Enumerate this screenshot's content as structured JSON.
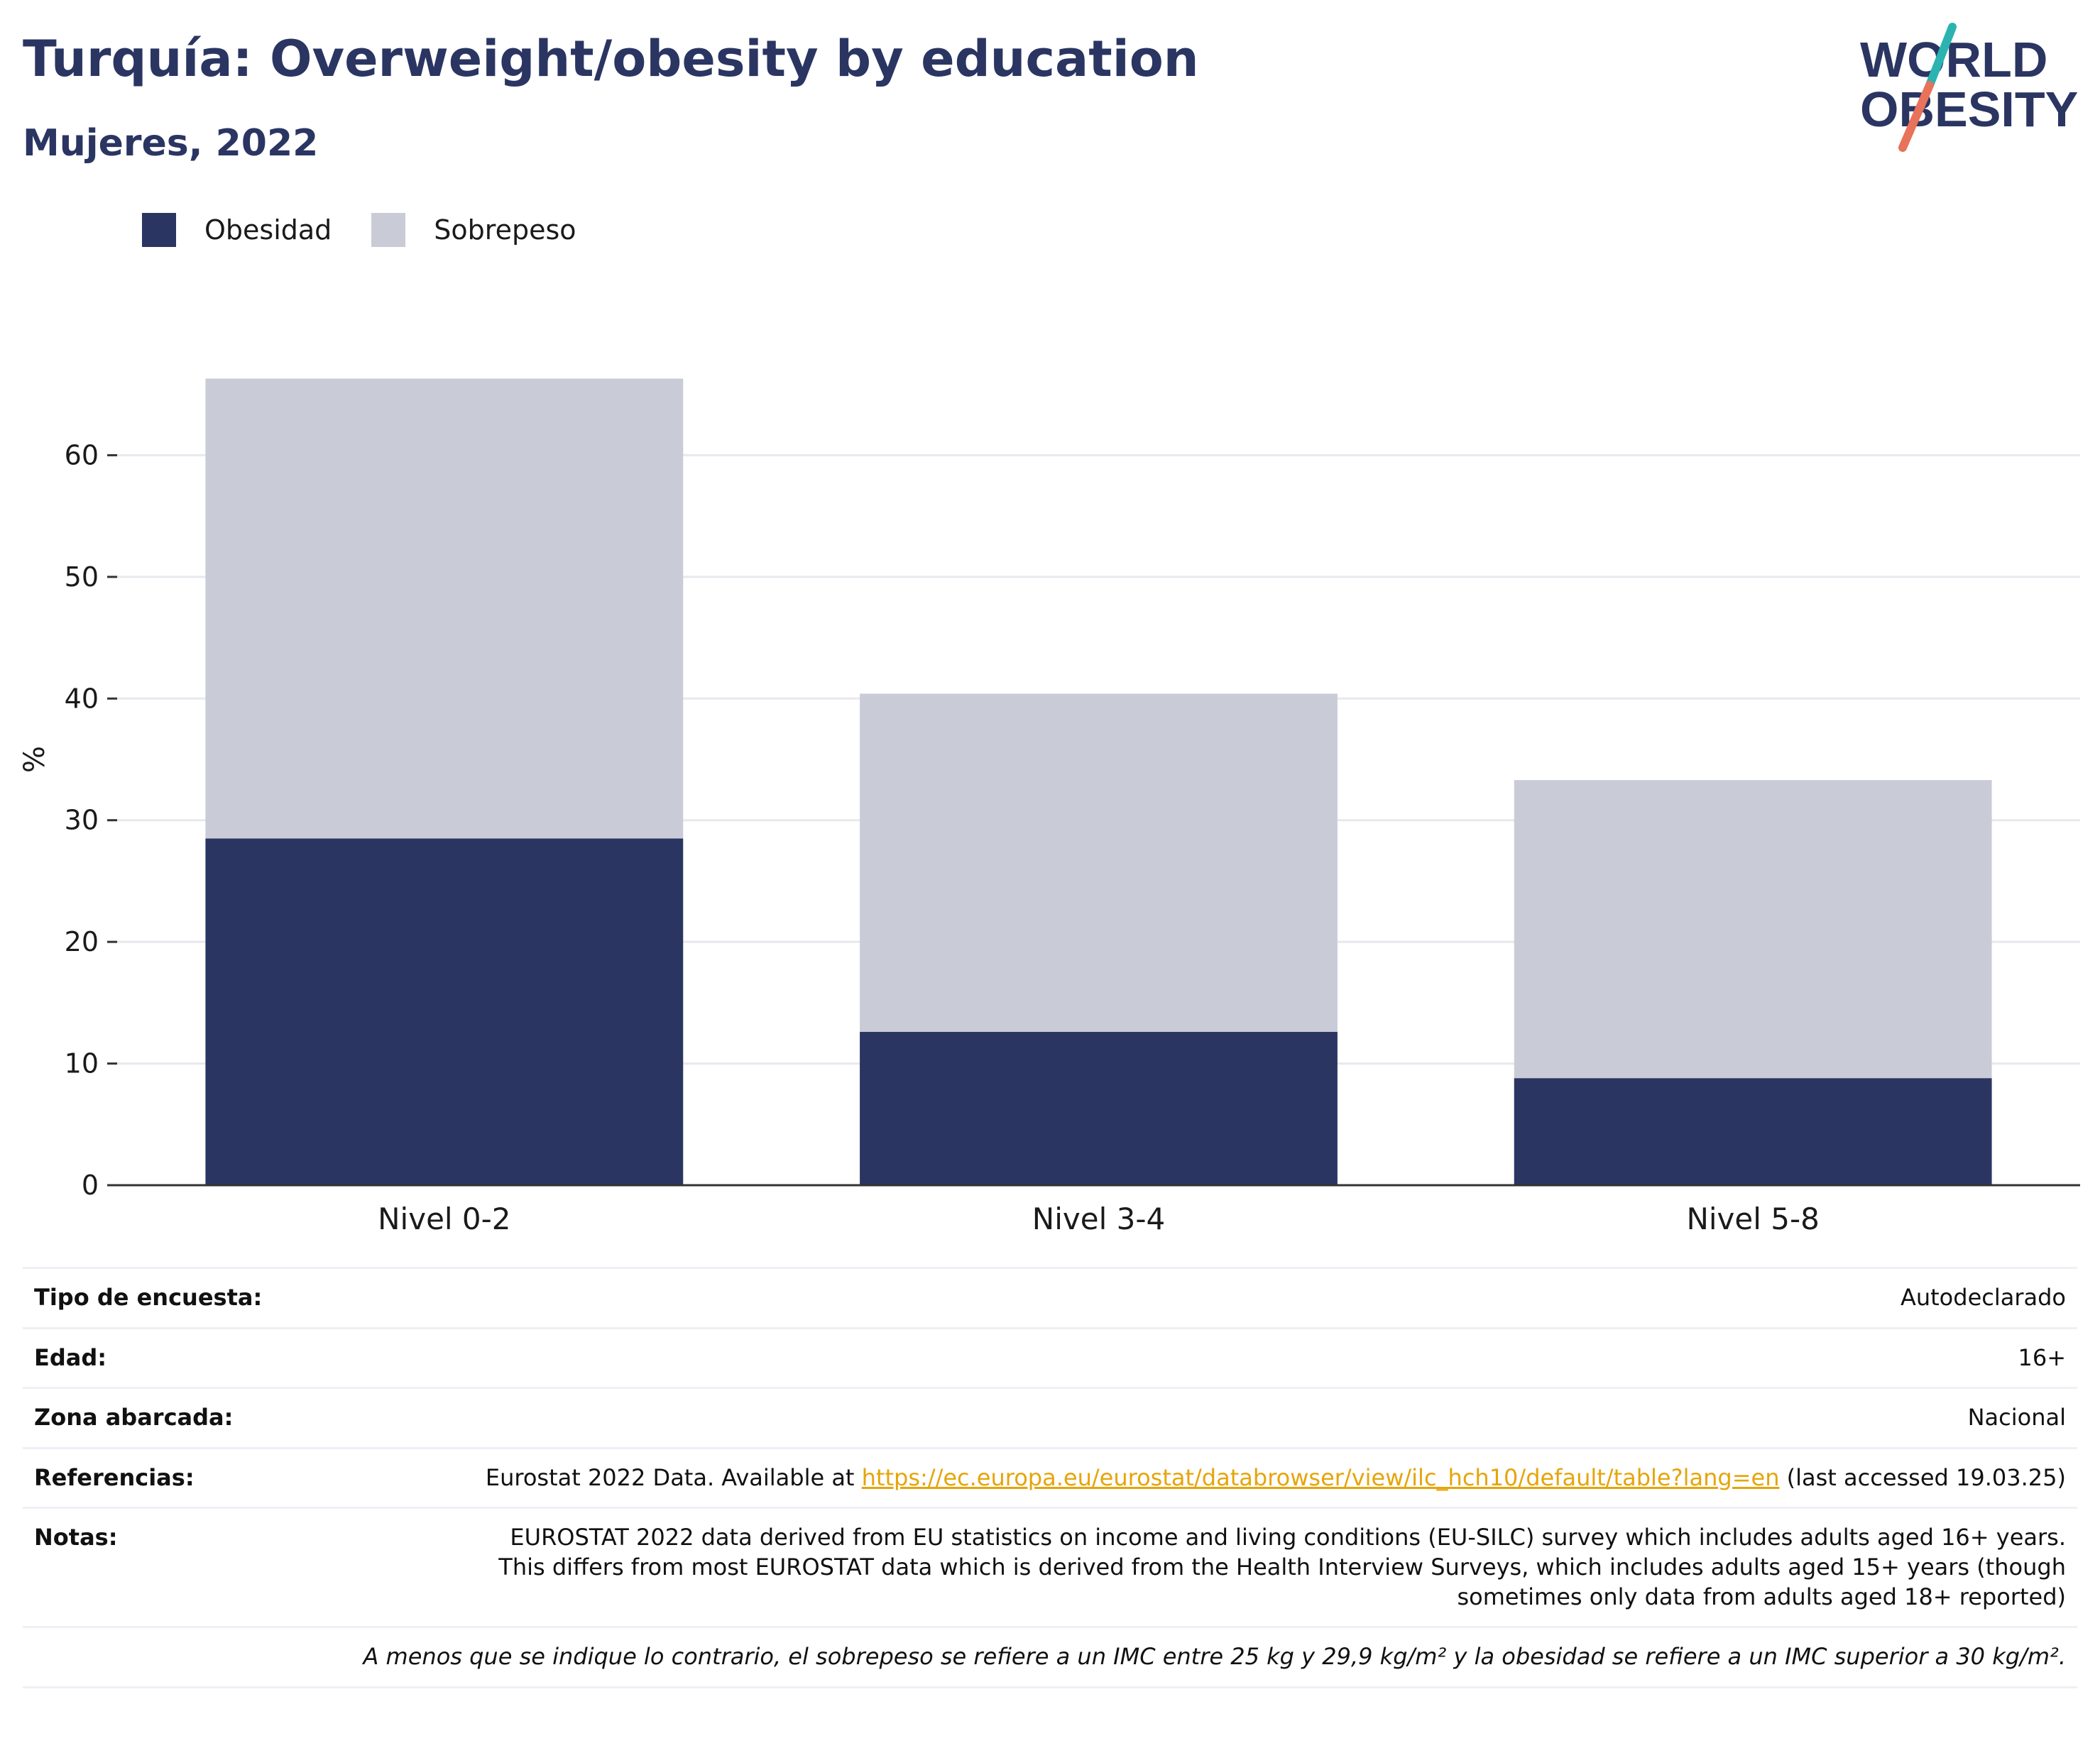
{
  "header": {
    "title": "Turquía: Overweight/obesity by education",
    "subtitle": "Mujeres, 2022"
  },
  "logo": {
    "line1": "WORLD",
    "line2": "OBESITY",
    "colors": {
      "text": "#2a3562",
      "slash_top": "#2bb3b1",
      "slash_bottom": "#e8725a"
    }
  },
  "legend": {
    "items": [
      {
        "label": "Obesidad",
        "color": "#2a3562"
      },
      {
        "label": "Sobrepeso",
        "color": "#c9ccd7"
      }
    ]
  },
  "chart_data": {
    "type": "bar",
    "stacked": true,
    "categories": [
      "Nivel 0-2",
      "Nivel 3-4",
      "Nivel 5-8"
    ],
    "series": [
      {
        "name": "Obesidad",
        "color": "#2a3562",
        "values": [
          28.5,
          12.6,
          8.8
        ]
      },
      {
        "name": "Sobrepeso",
        "color": "#c9ccd7",
        "values": [
          37.8,
          27.8,
          24.5
        ]
      }
    ],
    "ylabel": "%",
    "ylim": [
      0,
      70
    ],
    "yticks": [
      0,
      10,
      20,
      30,
      40,
      50,
      60
    ],
    "grid": true,
    "legend_position": "top-left"
  },
  "info": {
    "rows": [
      {
        "key": "Tipo de encuesta:",
        "value": "Autodeclarado"
      },
      {
        "key": "Edad:",
        "value": "16+"
      },
      {
        "key": "Zona abarcada:",
        "value": "Nacional"
      }
    ],
    "references": {
      "key": "Referencias:",
      "prefix": "Eurostat 2022 Data. Available at ",
      "link": "https://ec.europa.eu/eurostat/databrowser/view/ilc_hch10/default/table?lang=en",
      "suffix": " (last accessed 19.03.25)",
      "link_color": "#e5a50a"
    },
    "notes": {
      "key": "Notas:",
      "value": "EUROSTAT 2022 data derived from EU statistics on income and living conditions (EU-SILC) survey which includes adults aged 16+ years. This differs from most EUROSTAT data which is derived from the Health Interview Surveys, which includes adults aged 15+ years (though sometimes only data from adults aged 18+ reported)"
    },
    "footnote": "A menos que se indique lo contrario, el sobrepeso se refiere a un IMC entre 25 kg y 29,9 kg/m² y la obesidad se refiere a un IMC superior a 30 kg/m²."
  }
}
